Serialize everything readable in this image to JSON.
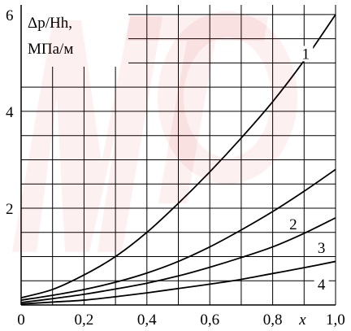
{
  "chart_data": {
    "type": "line",
    "ylabel_line1": "Δp/Hh,",
    "ylabel_line2": "МПа/м",
    "xlabel": "x",
    "xlim": [
      0,
      1.0
    ],
    "ylim": [
      0,
      6.2
    ],
    "x_ticks": [
      {
        "value": 0,
        "label": "0"
      },
      {
        "value": 0.2,
        "label": "0,2"
      },
      {
        "value": 0.4,
        "label": "0,4"
      },
      {
        "value": 0.6,
        "label": "0,6"
      },
      {
        "value": 0.8,
        "label": "0,8"
      },
      {
        "value": 1.0,
        "label": "1,0"
      }
    ],
    "y_ticks": [
      {
        "value": 2,
        "label": "2"
      },
      {
        "value": 4,
        "label": "4"
      },
      {
        "value": 6,
        "label": "6"
      }
    ],
    "grid": true,
    "series": [
      {
        "name": "1",
        "x": [
          0,
          0.1,
          0.2,
          0.3,
          0.4,
          0.5,
          0.6,
          0.7,
          0.8,
          0.9,
          1.0
        ],
        "y": [
          0.15,
          0.32,
          0.62,
          1.0,
          1.5,
          2.1,
          2.75,
          3.45,
          4.2,
          5.05,
          6.0
        ]
      },
      {
        "name": "2",
        "x": [
          0,
          0.1,
          0.2,
          0.3,
          0.4,
          0.5,
          0.6,
          0.7,
          0.8,
          0.9,
          1.0
        ],
        "y": [
          0.1,
          0.2,
          0.32,
          0.47,
          0.66,
          0.9,
          1.2,
          1.55,
          1.93,
          2.35,
          2.8
        ]
      },
      {
        "name": "3",
        "x": [
          0,
          0.1,
          0.2,
          0.3,
          0.4,
          0.5,
          0.6,
          0.7,
          0.8,
          0.9,
          1.0
        ],
        "y": [
          0.05,
          0.13,
          0.22,
          0.33,
          0.45,
          0.6,
          0.78,
          0.98,
          1.2,
          1.48,
          1.8
        ]
      },
      {
        "name": "4",
        "x": [
          0,
          0.1,
          0.2,
          0.3,
          0.4,
          0.5,
          0.6,
          0.7,
          0.8,
          0.9,
          1.0
        ],
        "y": [
          0.02,
          0.06,
          0.1,
          0.17,
          0.25,
          0.34,
          0.43,
          0.53,
          0.65,
          0.77,
          0.9
        ]
      }
    ]
  }
}
